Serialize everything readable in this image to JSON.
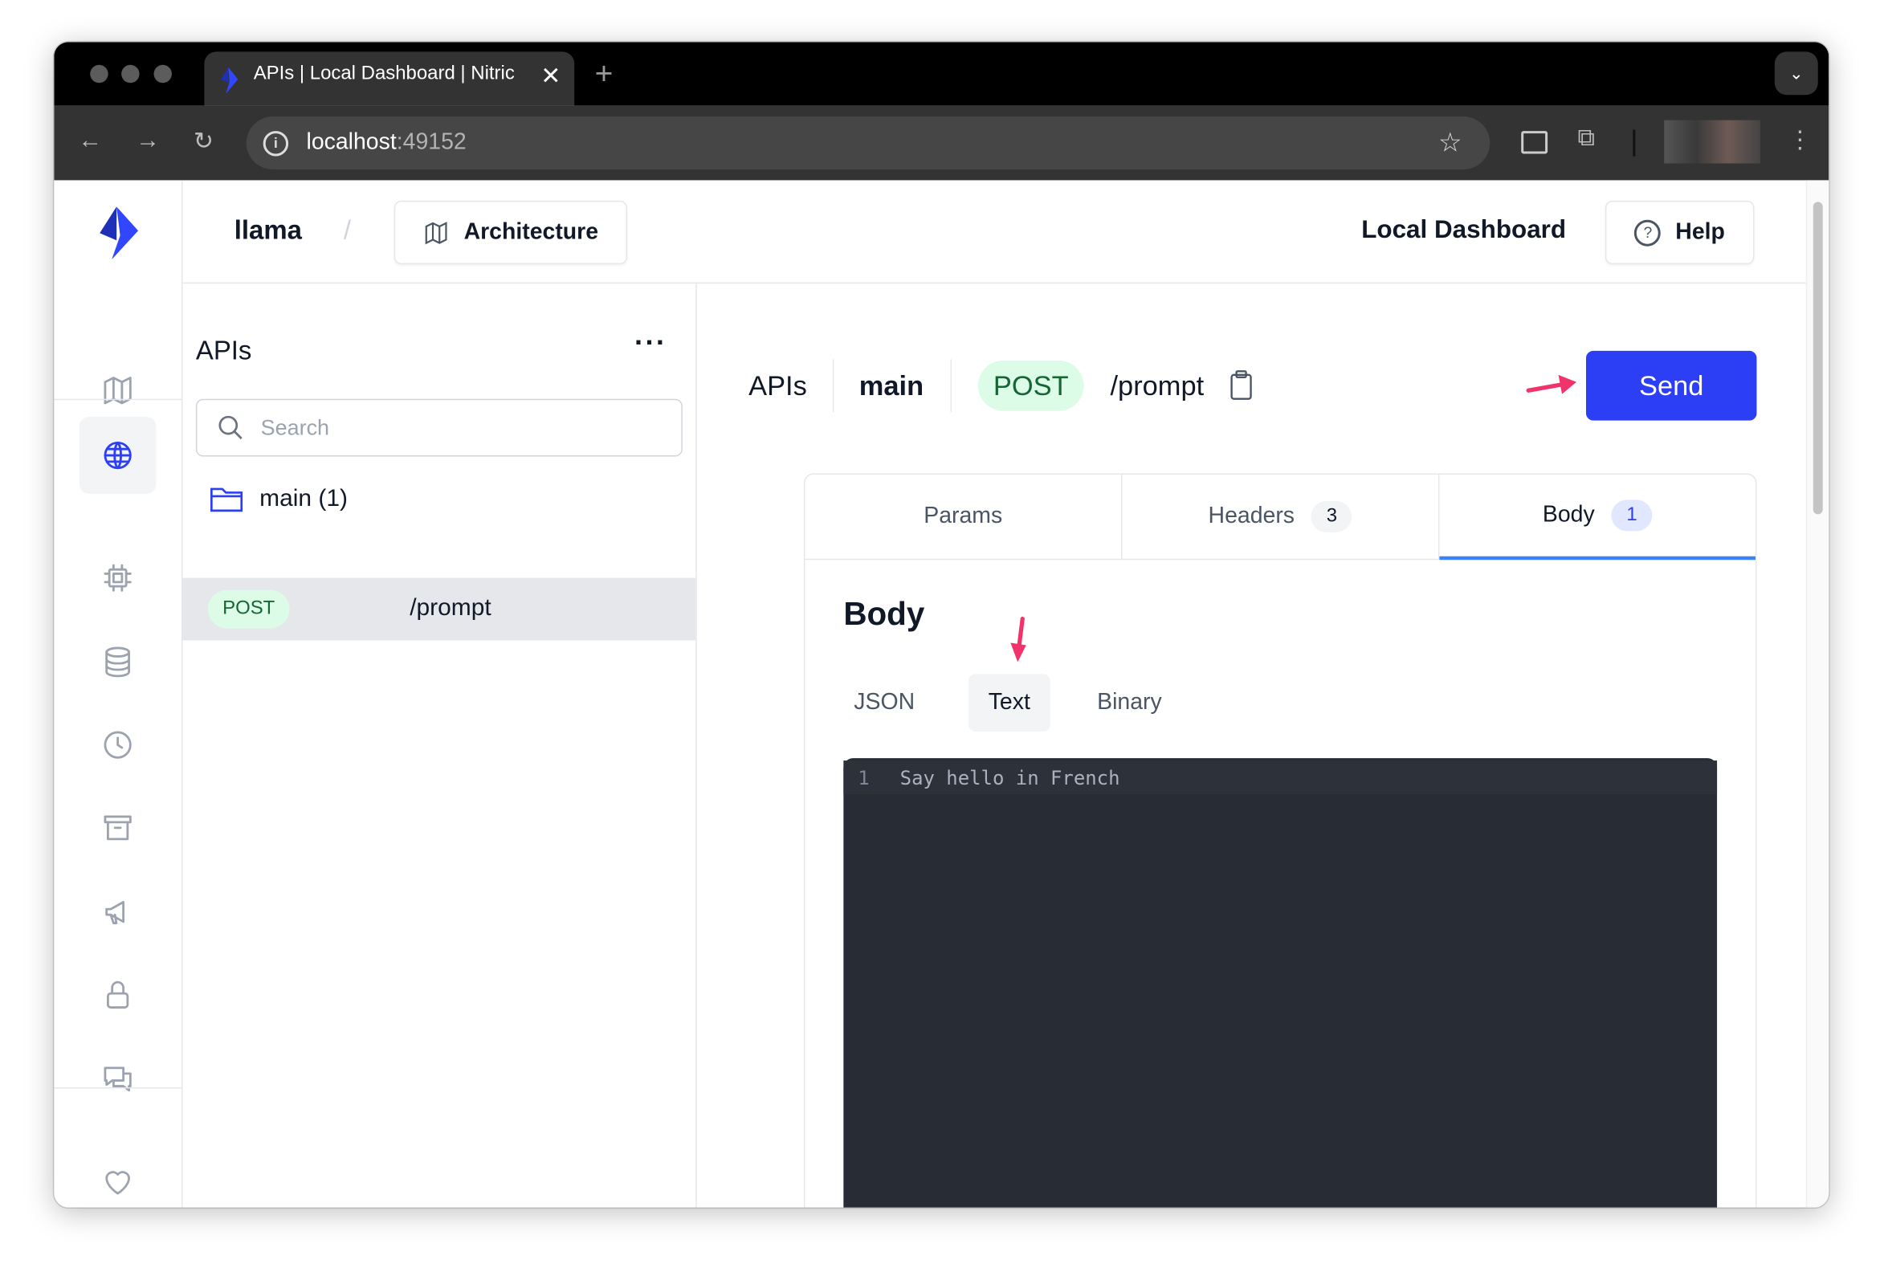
{
  "browser": {
    "tab_title": "APIs | Local Dashboard | Nitric",
    "url_host": "localhost",
    "url_port": ":49152"
  },
  "header": {
    "project": "llama",
    "separator": "/",
    "architecture_label": "Architecture",
    "dashboard_title": "Local Dashboard",
    "help_label": "Help"
  },
  "sidebar": {
    "items": [
      {
        "icon": "map-icon",
        "label": "Architecture"
      },
      {
        "icon": "globe-icon",
        "label": "APIs",
        "selected": true
      },
      {
        "icon": "cpu-icon",
        "label": "Services"
      },
      {
        "icon": "database-icon",
        "label": "Databases"
      },
      {
        "icon": "clock-icon",
        "label": "Schedules"
      },
      {
        "icon": "archive-icon",
        "label": "Storage"
      },
      {
        "icon": "megaphone-icon",
        "label": "Topics"
      },
      {
        "icon": "lock-icon",
        "label": "Secrets"
      },
      {
        "icon": "chat-icon",
        "label": "Websockets"
      },
      {
        "icon": "heart-icon",
        "label": "Sponsor"
      }
    ]
  },
  "apis_panel": {
    "title": "APIs",
    "search_placeholder": "Search",
    "folder": "main (1)",
    "routes": [
      {
        "method": "POST",
        "path": "/prompt",
        "selected": true
      }
    ]
  },
  "request": {
    "breadcrumb_api": "APIs",
    "breadcrumb_name": "main",
    "method": "POST",
    "path": "/prompt",
    "send_label": "Send",
    "tabs": [
      {
        "label": "Params",
        "count": null
      },
      {
        "label": "Headers",
        "count": "3"
      },
      {
        "label": "Body",
        "count": "1",
        "active": true
      }
    ],
    "body_title": "Body",
    "body_types": [
      "JSON",
      "Text",
      "Binary"
    ],
    "body_type_selected": "Text",
    "editor_lines": [
      {
        "num": "1",
        "text": "Say hello in French"
      }
    ]
  },
  "colors": {
    "accent": "#2c3ff5",
    "post_bg": "#dcfce7",
    "post_text": "#166534",
    "annotation_arrow": "#f0336a",
    "editor_bg": "#282c34"
  }
}
